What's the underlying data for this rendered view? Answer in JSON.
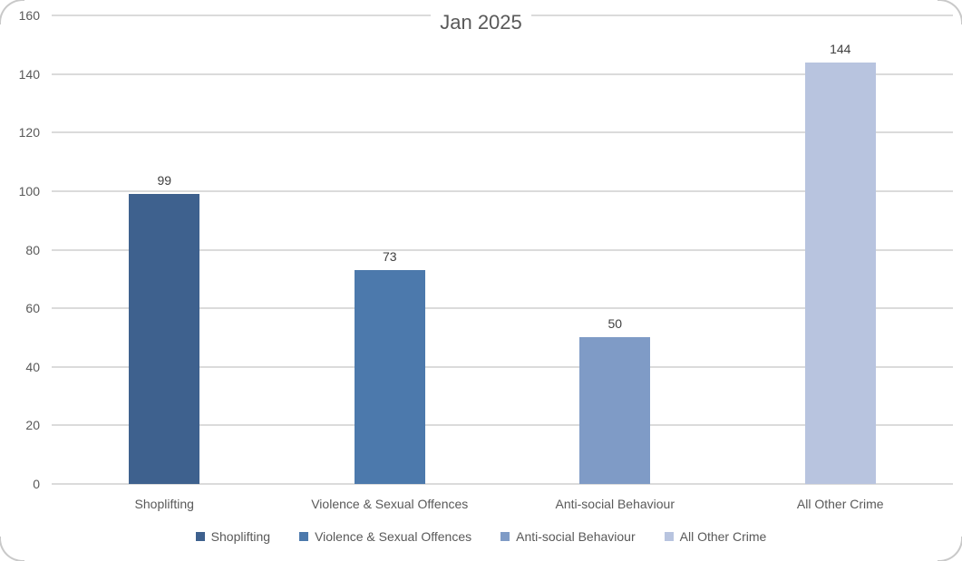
{
  "chart_data": {
    "type": "bar",
    "title": "Jan 2025",
    "categories": [
      "Shoplifting",
      "Violence & Sexual Offences",
      "Anti-social Behaviour",
      "All Other Crime"
    ],
    "values": [
      99,
      73,
      50,
      144
    ],
    "data_labels": [
      "99",
      "73",
      "50",
      "144"
    ],
    "bar_colors": [
      "#3E618E",
      "#4C79AC",
      "#7F9BC6",
      "#B8C4DF"
    ],
    "ylim": [
      0,
      160
    ],
    "yticks": [
      0,
      20,
      40,
      60,
      80,
      100,
      120,
      140,
      160
    ],
    "xlabel": "",
    "ylabel": "",
    "grid": true,
    "gridline_color": "#dbdbdb",
    "legend_position": "bottom",
    "legend": [
      "Shoplifting",
      "Violence & Sexual Offences",
      "Anti-social Behaviour",
      "All Other Crime"
    ]
  }
}
